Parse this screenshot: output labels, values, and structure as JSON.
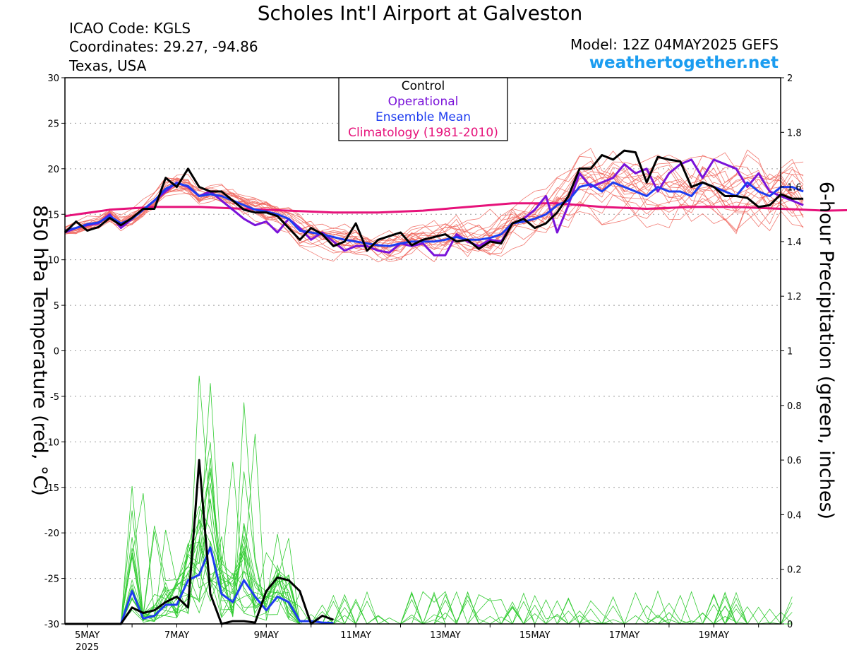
{
  "header": {
    "title": "Scholes Int'l Airport at Galveston",
    "icao": "ICAO Code: KGLS",
    "coordinates": "Coordinates: 29.27, -94.86",
    "region": "Texas, USA",
    "model": "Model: 12Z 04MAY2025 GEFS",
    "site": "weathertogether.net"
  },
  "colors": {
    "members_temp": "#f0645a",
    "members_precip": "#33cc33",
    "control": "#000000",
    "operational": "#7a12d9",
    "ensemble_mean": "#1e3cf0",
    "climatology": "#e6127a",
    "site": "#1a9cf0"
  },
  "chart_data": {
    "type": "line",
    "xlabel": "",
    "ylabel": "850 hPa Temperature (red, °C)",
    "ylabel2": "6-hour Precipitation (green, inches)",
    "x_axis": {
      "start": "2025-05-04T12Z",
      "step_hours": 6,
      "ticks": [
        "5MAY",
        "7MAY",
        "9MAY",
        "11MAY",
        "13MAY",
        "15MAY",
        "17MAY",
        "19MAY"
      ],
      "tick_day_index": [
        0,
        2,
        4,
        6,
        8,
        10,
        12,
        14
      ],
      "year_label": "2025"
    },
    "ylim": [
      -30,
      30
    ],
    "yticks": [
      30,
      25,
      20,
      15,
      10,
      5,
      0,
      -5,
      -10,
      -15,
      -20,
      -25,
      -30
    ],
    "ylim2": [
      0,
      2
    ],
    "yticks2": [
      "2",
      "1.8",
      "1.6",
      "1.4",
      "1.2",
      "1",
      "0.8",
      "0.6",
      "0.4",
      "0.2",
      "0"
    ],
    "grid": "horizontal dotted",
    "legend": {
      "position": "top-center",
      "entries": [
        {
          "label": "Control",
          "color": "#000000"
        },
        {
          "label": "Operational",
          "color": "#7a12d9"
        },
        {
          "label": "Ensemble Mean",
          "color": "#1e3cf0"
        },
        {
          "label": "Climatology (1981-2010)",
          "color": "#e6127a"
        }
      ]
    },
    "series": [
      {
        "name": "Control",
        "axis": "temp",
        "values": [
          13,
          14.2,
          13.2,
          13.6,
          14.6,
          13.8,
          14.6,
          15.6,
          15.6,
          19,
          18,
          20,
          18,
          17.5,
          17.5,
          16.5,
          15.5,
          15.2,
          15.2,
          14.8,
          13.5,
          12.2,
          13.5,
          12.8,
          11.5,
          12,
          14,
          11,
          12.2,
          12.6,
          13,
          11.6,
          12.2,
          12.5,
          12.8,
          12,
          12.2,
          11.2,
          12,
          11.8,
          14,
          14.5,
          13.5,
          14,
          15.2,
          17,
          20,
          20,
          21.5,
          21,
          22,
          21.8,
          18.5,
          21.3,
          21,
          20.8,
          18,
          18.5,
          18,
          17,
          17,
          16.8,
          15.8,
          16,
          17.2,
          16.7,
          16.7
        ]
      },
      {
        "name": "Operational",
        "axis": "temp",
        "values": [
          13,
          13.5,
          13.8,
          14,
          15,
          13.5,
          14.5,
          15.5,
          16.5,
          17.5,
          18.5,
          18,
          17,
          17.5,
          16.5,
          15.5,
          14.5,
          13.8,
          14.2,
          13,
          14.5,
          13.5,
          12.2,
          13,
          12,
          11,
          11.5,
          11.5,
          11,
          10.8,
          11.8,
          11.5,
          11.8,
          10.5,
          10.5,
          12.8,
          12,
          11.5,
          12.2,
          12,
          14,
          14.5,
          15.5,
          17,
          13,
          16,
          19.5,
          18,
          18.5,
          19,
          20.5,
          19.5,
          20,
          17.5,
          19.5,
          20.5,
          21,
          19,
          21,
          20.5,
          20,
          18,
          19.5,
          17.5,
          17,
          16.5,
          16
        ]
      },
      {
        "name": "Ensemble Mean",
        "axis": "temp",
        "values": [
          13.2,
          13.5,
          13.9,
          14.1,
          14.8,
          14,
          14.5,
          15.5,
          16.5,
          17.8,
          18.4,
          18.1,
          17,
          17.2,
          17,
          16.5,
          16,
          15.5,
          15.3,
          15,
          14.5,
          13.2,
          13,
          12.8,
          12.5,
          12.2,
          12,
          11.8,
          11.6,
          11.5,
          11.8,
          12,
          12,
          12,
          12.2,
          12.5,
          12.2,
          12.2,
          12.4,
          12.8,
          14,
          14.2,
          14.5,
          15,
          16,
          16.5,
          18,
          18.3,
          17.5,
          18.5,
          18,
          17.5,
          17,
          18,
          17.5,
          17.5,
          17,
          18.5,
          18,
          17.5,
          17,
          18.5,
          17.5,
          17,
          18,
          18,
          17.5
        ]
      },
      {
        "name": "Climatology (1981-2010)",
        "axis": "temp",
        "values": [
          14.8,
          15.5,
          15.8,
          15.8,
          15.6,
          15.4,
          15.2,
          15.2,
          15.4,
          15.8,
          16.2,
          16.2,
          15.8,
          15.6,
          15.8,
          15.8,
          15.6,
          15.4,
          15.5,
          15.6
        ]
      },
      {
        "name": "Control",
        "axis": "precip",
        "values": [
          0,
          0,
          0,
          0,
          0,
          0,
          0.06,
          0.04,
          0.05,
          0.08,
          0.1,
          0.06,
          0.6,
          0.11,
          0,
          0.01,
          0.01,
          0.005,
          0.12,
          0.17,
          0.16,
          0.12,
          0,
          0.03,
          0.015
        ]
      },
      {
        "name": "Ensemble Mean",
        "axis": "precip",
        "values": [
          0,
          0,
          0,
          0,
          0,
          0,
          0.12,
          0.02,
          0.03,
          0.07,
          0.07,
          0.16,
          0.18,
          0.28,
          0.11,
          0.08,
          0.16,
          0.1,
          0.05,
          0.1,
          0.08,
          0.01,
          0.01,
          0.005,
          0.003
        ]
      }
    ]
  }
}
